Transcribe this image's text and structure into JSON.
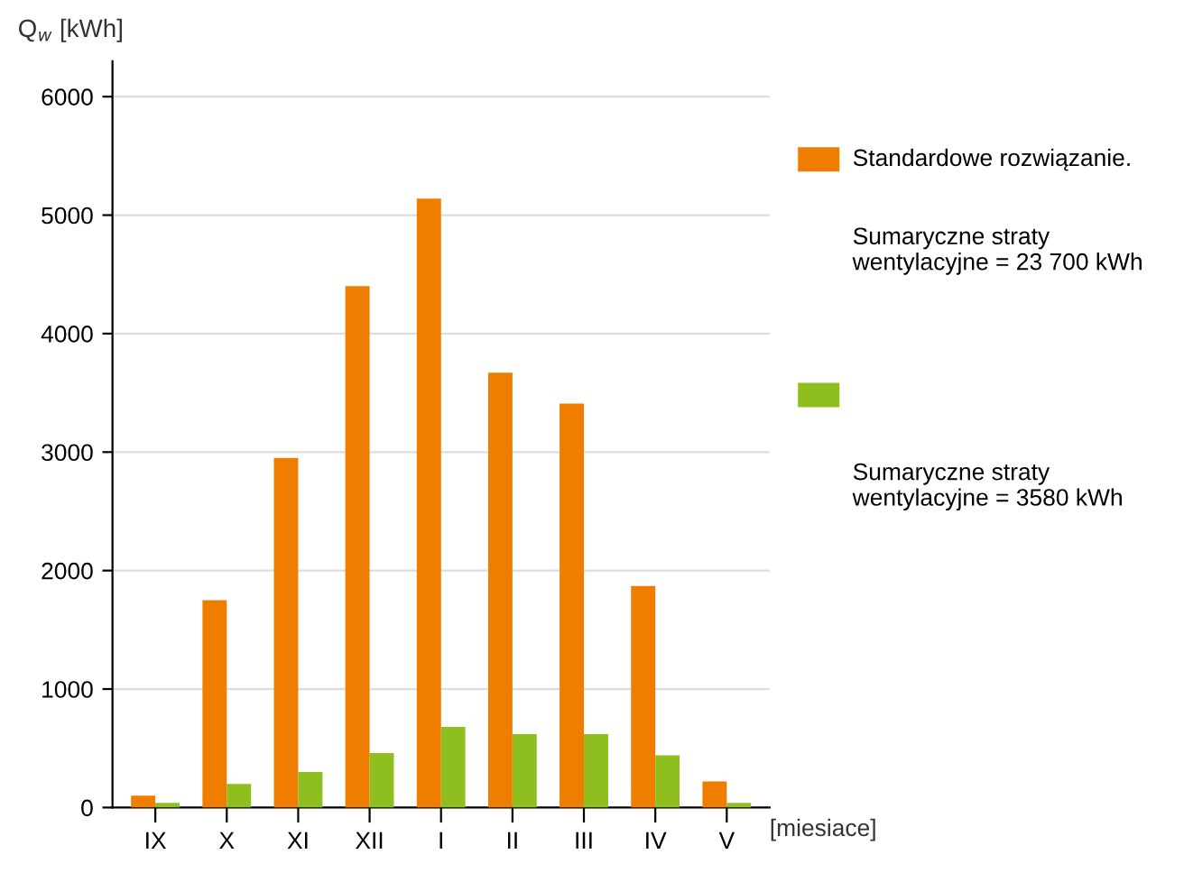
{
  "chart_data": {
    "type": "bar",
    "ylabel": "Q$_{w}$ [kWh]",
    "xlabel": "[miesiace]",
    "categories": [
      "IX",
      "X",
      "XI",
      "XII",
      "I",
      "II",
      "III",
      "IV",
      "V"
    ],
    "series": [
      {
        "name": "Standardowe rozwiązanie.",
        "color": "#ee7d00",
        "values": [
          100,
          1750,
          2950,
          4400,
          5140,
          3670,
          3410,
          1870,
          220
        ]
      },
      {
        "color": "#8fbf1e",
        "values": [
          40,
          200,
          300,
          460,
          680,
          620,
          620,
          440,
          40
        ]
      }
    ],
    "ylim": [
      0,
      6300
    ],
    "yticks": [
      0,
      1000,
      2000,
      3000,
      4000,
      5000,
      6000
    ],
    "grid": "y",
    "legend": "right",
    "annotations": [
      "Sumaryczne straty\nwentylacyjne = 23 700 kWh",
      "Sumaryczne straty\nwentylacyjne = 3580 kWh"
    ]
  }
}
